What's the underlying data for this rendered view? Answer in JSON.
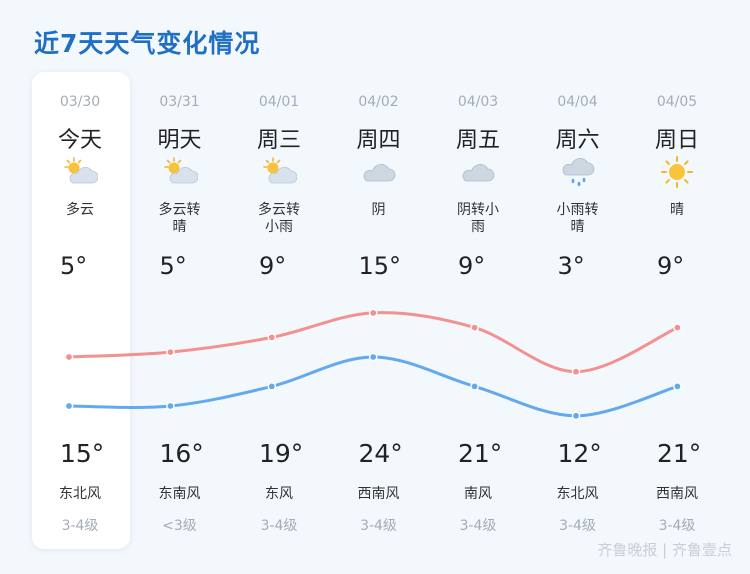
{
  "title": "近7天天气变化情况",
  "days": [
    {
      "date": "03/30",
      "day": "今天",
      "icon": "partly-cloudy-icon",
      "cond1": "多云",
      "cond2": "",
      "low": "5°",
      "high": "15°",
      "wind": "东北风",
      "level": "3-4级",
      "low_value": 5,
      "high_value": 15
    },
    {
      "date": "03/31",
      "day": "明天",
      "icon": "partly-cloudy-icon",
      "cond1": "多云转",
      "cond2": "晴",
      "low": "5°",
      "high": "16°",
      "wind": "东南风",
      "level": "<3级",
      "low_value": 5,
      "high_value": 16
    },
    {
      "date": "04/01",
      "day": "周三",
      "icon": "partly-cloudy-icon",
      "cond1": "多云转",
      "cond2": "小雨",
      "low": "9°",
      "high": "19°",
      "wind": "东风",
      "level": "3-4级",
      "low_value": 9,
      "high_value": 19
    },
    {
      "date": "04/02",
      "day": "周四",
      "icon": "cloud-icon",
      "cond1": "阴",
      "cond2": "",
      "low": "15°",
      "high": "24°",
      "wind": "西南风",
      "level": "3-4级",
      "low_value": 15,
      "high_value": 24
    },
    {
      "date": "04/03",
      "day": "周五",
      "icon": "cloud-icon",
      "cond1": "阴转小",
      "cond2": "雨",
      "low": "9°",
      "high": "21°",
      "wind": "南风",
      "level": "3-4级",
      "low_value": 9,
      "high_value": 21
    },
    {
      "date": "04/04",
      "day": "周六",
      "icon": "rain-cloud-icon",
      "cond1": "小雨转",
      "cond2": "晴",
      "low": "3°",
      "high": "12°",
      "wind": "东北风",
      "level": "3-4级",
      "low_value": 3,
      "high_value": 12
    },
    {
      "date": "04/05",
      "day": "周日",
      "icon": "sun-icon",
      "cond1": "晴",
      "cond2": "",
      "low": "9°",
      "high": "21°",
      "wind": "西南风",
      "level": "3-4级",
      "low_value": 9,
      "high_value": 21
    }
  ],
  "colors": {
    "high_line": "#f39090",
    "low_line": "#62a9ef",
    "title": "#1f6fc4"
  },
  "watermark": "齐鲁晚报 | 齐鲁壹点"
}
